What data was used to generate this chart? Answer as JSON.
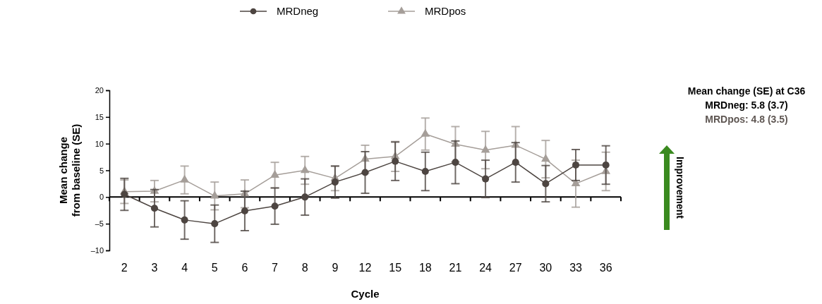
{
  "chart_data": {
    "type": "line",
    "xlabel": "Cycle",
    "ylabel": "Mean change from baseline (SE)",
    "categories": [
      "2",
      "3",
      "4",
      "5",
      "6",
      "7",
      "8",
      "9",
      "12",
      "15",
      "18",
      "21",
      "24",
      "27",
      "30",
      "33",
      "36"
    ],
    "ylim": [
      -10,
      20
    ],
    "yticks": [
      {
        "value": -10,
        "label": "–10"
      },
      {
        "value": -5,
        "label": "–5"
      },
      0,
      5,
      10,
      15,
      20
    ],
    "legend": "top",
    "series": [
      {
        "name": "MRDneg",
        "color": "#4d4541",
        "marker": "circle",
        "values": [
          0.5,
          -2.1,
          -4.3,
          -5.0,
          -2.6,
          -1.7,
          0,
          2.8,
          4.6,
          6.7,
          4.8,
          6.5,
          3.4,
          6.5,
          2.5,
          6.0,
          6.0
        ],
        "errors": [
          3.0,
          3.5,
          3.6,
          3.5,
          3.7,
          3.4,
          3.4,
          3.0,
          3.9,
          3.6,
          3.6,
          4.0,
          3.5,
          3.7,
          3.4,
          2.9,
          3.6
        ]
      },
      {
        "name": "MRDpos",
        "color": "#a59e99",
        "marker": "triangle",
        "values": [
          1.0,
          1.1,
          3.2,
          0.2,
          0.6,
          4.1,
          5.0,
          3.5,
          7.1,
          7.6,
          11.8,
          9.9,
          8.8,
          9.7,
          7.1,
          2.5,
          4.8
        ],
        "errors": [
          2.2,
          2.0,
          2.6,
          2.6,
          2.6,
          2.4,
          2.6,
          2.3,
          2.6,
          2.8,
          3.0,
          3.3,
          3.5,
          3.5,
          3.5,
          4.4,
          3.6
        ]
      }
    ],
    "annotations": [
      "Mean change (SE) at C36",
      "MRDneg: 5.8 (3.7)",
      "MRDpos: 4.8 (3.5)",
      "Improvement"
    ]
  }
}
